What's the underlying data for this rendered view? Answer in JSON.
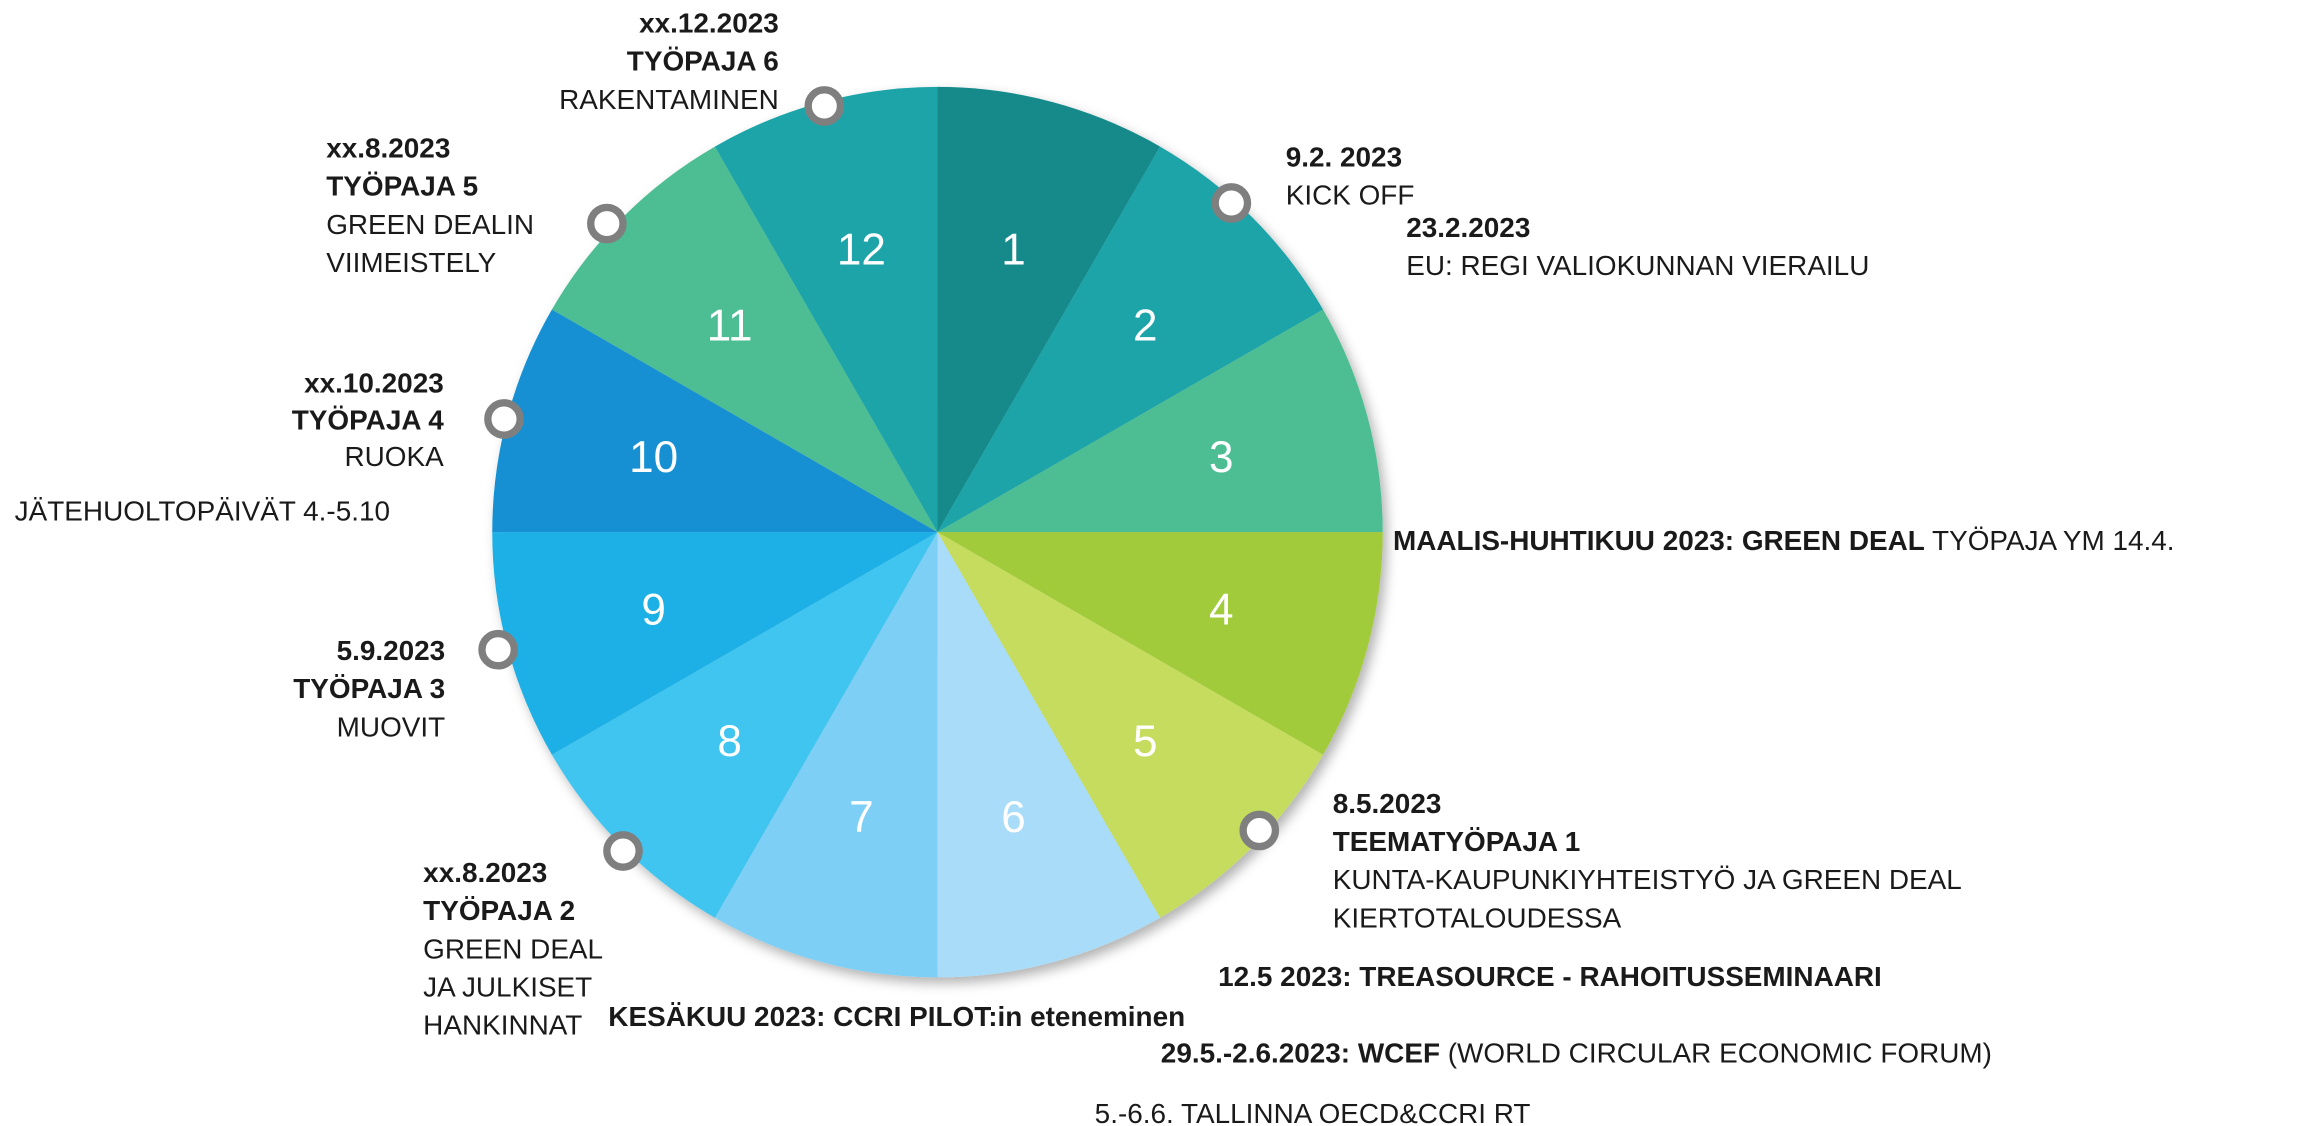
{
  "segments": [
    {
      "label": "1",
      "color": "#138a8a"
    },
    {
      "label": "2",
      "color": "#1ea4a8"
    },
    {
      "label": "3",
      "color": "#4dbd94"
    },
    {
      "label": "4",
      "color": "#a2cb3a"
    },
    {
      "label": "5",
      "color": "#c6dc5e"
    },
    {
      "label": "6",
      "color": "#a9dcf8"
    },
    {
      "label": "7",
      "color": "#7dcff5"
    },
    {
      "label": "8",
      "color": "#3fc5f0"
    },
    {
      "label": "9",
      "color": "#1bb0e6"
    },
    {
      "label": "10",
      "color": "#1590d3"
    },
    {
      "label": "11",
      "color": "#4dbd94"
    },
    {
      "label": "12",
      "color": "#1ea4a8"
    }
  ],
  "annotations": [
    {
      "lines": [
        [
          {
            "text": "xx.12.2023",
            "bold": true
          }
        ],
        [
          {
            "text": "TYÖPAJA 6",
            "bold": true
          }
        ],
        [
          {
            "text": "RAKENTAMINEN",
            "bold": false
          }
        ]
      ]
    },
    {
      "lines": [
        [
          {
            "text": "9.2. 2023",
            "bold": true
          }
        ],
        [
          {
            "text": "KICK OFF",
            "bold": false
          }
        ]
      ]
    },
    {
      "lines": [
        [
          {
            "text": "23.2.2023",
            "bold": true
          }
        ],
        [
          {
            "text": "EU: REGI VALIOKUNNAN VIERAILU",
            "bold": false
          }
        ]
      ]
    },
    {
      "lines": [
        [
          {
            "text": "MAALIS-HUHTIKUU 2023: GREEN DEAL",
            "bold": true
          },
          {
            "text": " TYÖPAJA YM 14.4.",
            "bold": false
          }
        ]
      ]
    },
    {
      "lines": [
        [
          {
            "text": "8.5.2023",
            "bold": true
          }
        ],
        [
          {
            "text": "TEEMATYÖPAJA 1",
            "bold": true
          }
        ],
        [
          {
            "text": "KUNTA-KAUPUNKIYHTEISTYÖ JA GREEN DEAL",
            "bold": false
          }
        ],
        [
          {
            "text": "KIERTOTALOUDESSA",
            "bold": false
          }
        ]
      ]
    },
    {
      "lines": [
        [
          {
            "text": "12.5 2023: TREASOURCE - RAHOITUSSEMINAARI",
            "bold": true
          }
        ]
      ]
    },
    {
      "lines": [
        [
          {
            "text": "29.5.-2.6.2023: WCEF",
            "bold": true
          },
          {
            "text": " (WORLD CIRCULAR ECONOMIC FORUM)",
            "bold": false
          }
        ]
      ]
    },
    {
      "lines": [
        [
          {
            "text": "5.-6.6. TALLINNA OECD&CCRI RT",
            "bold": false
          }
        ]
      ]
    },
    {
      "lines": [
        [
          {
            "text": "KESÄKUU 2023: CCRI PILOT:in eteneminen",
            "bold": true
          }
        ]
      ]
    },
    {
      "lines": [
        [
          {
            "text": "xx.8.2023",
            "bold": true
          }
        ],
        [
          {
            "text": "TYÖPAJA 2",
            "bold": true
          }
        ],
        [
          {
            "text": "GREEN DEAL",
            "bold": false
          }
        ],
        [
          {
            "text": "JA JULKISET",
            "bold": false
          }
        ],
        [
          {
            "text": "HANKINNAT",
            "bold": false
          }
        ]
      ]
    },
    {
      "lines": [
        [
          {
            "text": "5.9.2023",
            "bold": true
          }
        ],
        [
          {
            "text": "TYÖPAJA 3",
            "bold": true
          }
        ],
        [
          {
            "text": "MUOVIT",
            "bold": false
          }
        ]
      ]
    },
    {
      "lines": [
        [
          {
            "text": "JÄTEHUOLTOPÄIVÄT 4.-5.10",
            "bold": false
          }
        ]
      ]
    },
    {
      "lines": [
        [
          {
            "text": "xx.10.2023",
            "bold": true
          }
        ],
        [
          {
            "text": "TYÖPAJA 4",
            "bold": true
          }
        ],
        [
          {
            "text": "RUOKA",
            "bold": false
          }
        ]
      ]
    },
    {
      "lines": [
        [
          {
            "text": "xx.8.2023",
            "bold": true
          }
        ],
        [
          {
            "text": "TYÖPAJA 5",
            "bold": true
          }
        ],
        [
          {
            "text": "GREEN DEALIN",
            "bold": false
          }
        ],
        [
          {
            "text": "VIIMEISTELY",
            "bold": false
          }
        ]
      ]
    }
  ]
}
